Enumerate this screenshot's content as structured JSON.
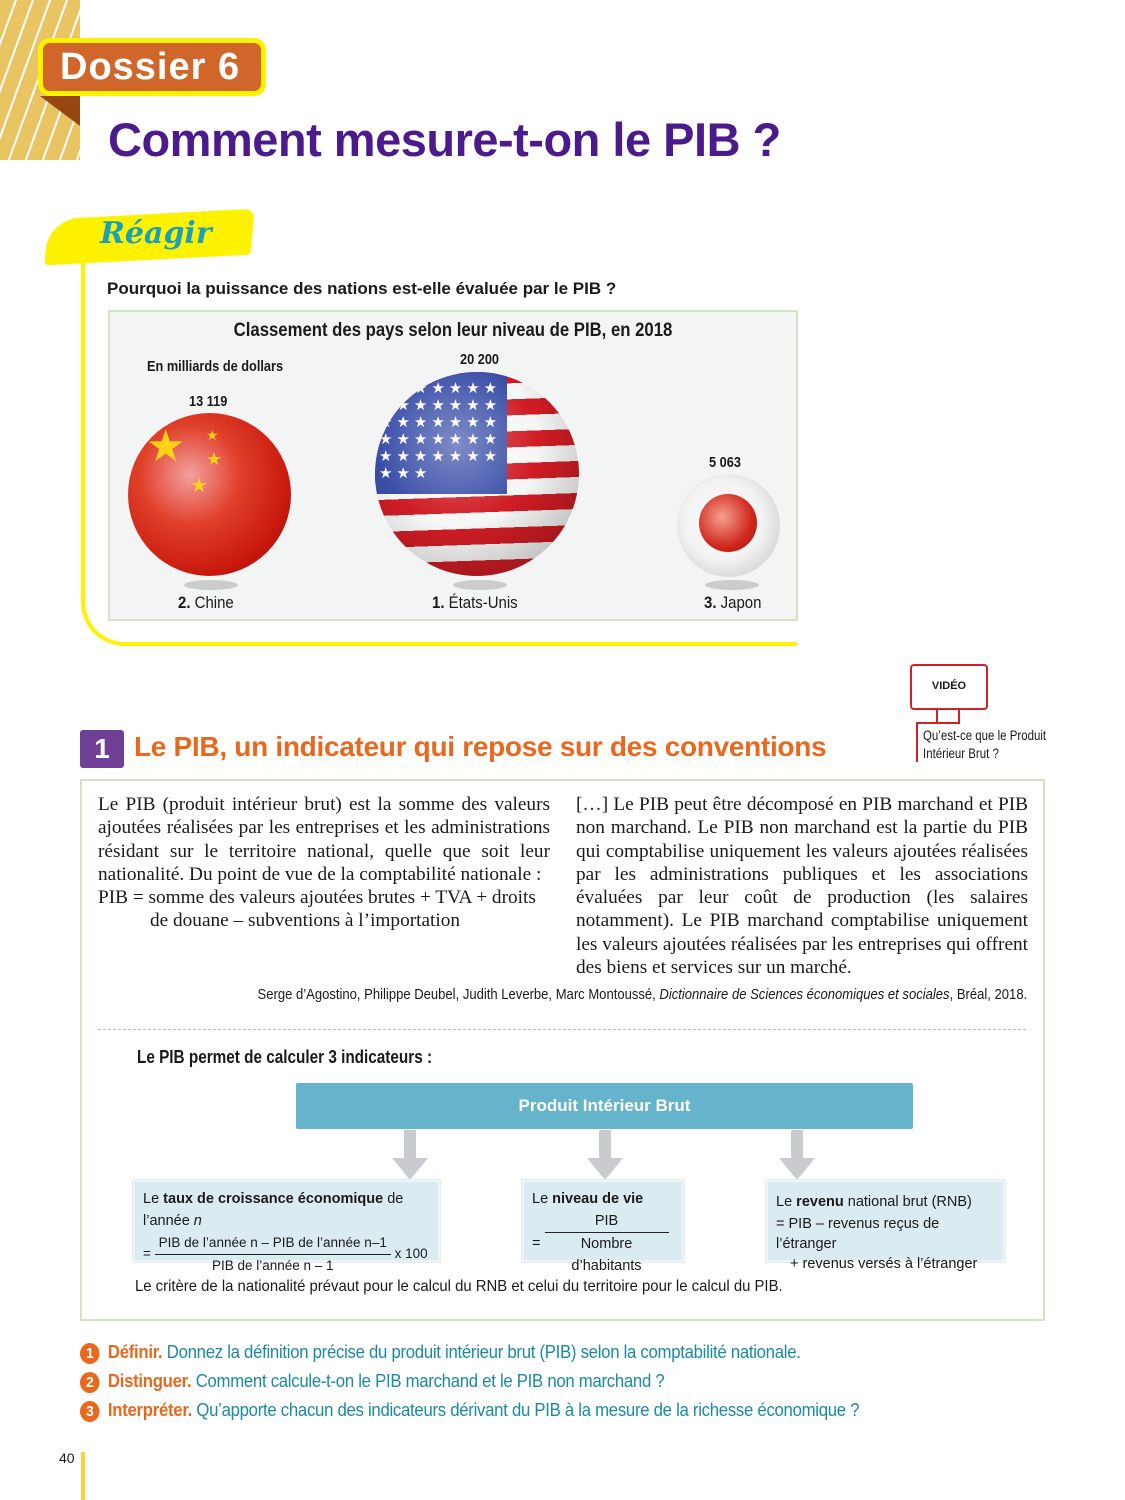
{
  "header": {
    "dossier": "Dossier 6",
    "title": "Comment mesure-t-on le PIB ?"
  },
  "reagir": {
    "label": "Réagir",
    "question": "Pourquoi la puissance des nations est-elle évaluée par le PIB ?",
    "chart": {
      "title": "Classement des pays selon leur niveau de PIB, en 2018",
      "unit": "En milliards de dollars",
      "countries": [
        {
          "rank": "2.",
          "name": "Chine",
          "value": "13 119",
          "flag": "china"
        },
        {
          "rank": "1.",
          "name": "États-Unis",
          "value": "20 200",
          "flag": "usa"
        },
        {
          "rank": "3.",
          "name": "Japon",
          "value": "5 063",
          "flag": "japan"
        }
      ]
    }
  },
  "video": {
    "label": "VIDÉO",
    "caption_1": "Qu’est-ce que le Produit",
    "caption_2": "Intérieur Brut ?",
    "color": "#d0202a"
  },
  "section": {
    "number": "1",
    "title": "Le PIB, un indicateur qui repose sur des conventions",
    "left_text": "Le PIB (produit intérieur brut) est la somme des valeurs ajoutées réalisées par les entreprises et les administrations résidant sur le territoire national, quelle que soit leur nationalité. Du point de vue de la comptabilité nationale :",
    "formula_1": "PIB = somme des valeurs ajoutées brutes + TVA + droits",
    "formula_2": "de douane – subventions à l’importation",
    "right_text": "[…] Le PIB peut être décomposé en PIB marchand et PIB non marchand. Le PIB non marchand est la partie du PIB qui comptabilise uniquement les valeurs ajoutées réalisées par les administrations publiques et les associations évaluées par leur coût de production (les salaires notamment). Le PIB marchand comptabilise uniquement les valeurs ajoutées réalisées par les entreprises qui offrent des biens et services sur un marché.",
    "citation_authors": "Serge d’Agostino, Philippe Deubel, Judith Leverbe, Marc Montoussé, ",
    "citation_book": "Dictionnaire de Sciences économiques et sociales",
    "citation_end": ", Bréal, 2018.",
    "indicators_intro": "Le PIB permet de calculer 3 indicateurs :",
    "pib_label": "Produit Intérieur Brut",
    "ind1": {
      "t1": "Le ",
      "tb": "taux de croissance économique",
      "t2": " de l’année ",
      "n": "n",
      "eq": "=",
      "num": "PIB de l’année n – PIB de l’année n–1",
      "den": "PIB de l’année n – 1",
      "mult": "x 100"
    },
    "ind2": {
      "t1": "Le ",
      "tb": "niveau de vie",
      "eq": "=",
      "num": "PIB",
      "den": "Nombre d’habitants"
    },
    "ind3": {
      "t1": "Le ",
      "tb": "revenu",
      "t2": " national brut (RNB)",
      "l1": "=  PIB – revenus reçus de l’étranger",
      "l2": "+ revenus versés à l’étranger"
    },
    "note": "Le critère de la nationalité prévaut pour le calcul du RNB et celui du territoire pour le calcul du PIB."
  },
  "questions": [
    {
      "n": "1",
      "label": "Définir.",
      "text": "Donnez la définition précise du produit intérieur brut (PIB) selon la comptabilité nationale."
    },
    {
      "n": "2",
      "label": "Distinguer.",
      "text": "Comment calcule-t-on le PIB marchand et le PIB non marchand ?"
    },
    {
      "n": "3",
      "label": "Interpréter.",
      "text": "Qu’apporte chacun des indicateurs dérivant du PIB à la mesure de la richesse économique ?"
    }
  ],
  "page_number": "40",
  "colors": {
    "title": "#4b1a8c",
    "accent": "#e8681e",
    "question_text": "#1a8aa0",
    "badge": "#d0662a",
    "highlight": "#fff200",
    "pib_bar": "#66b4cc"
  }
}
